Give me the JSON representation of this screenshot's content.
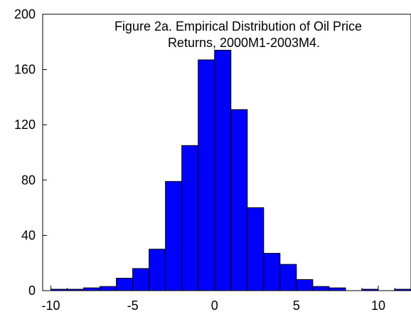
{
  "chart_data": {
    "type": "bar",
    "title": "Figure 2a. Empirical Distribution of Oil Price",
    "subtitle": "Returns, 2000M1-2003M4.",
    "xlabel": "",
    "ylabel": "",
    "xlim": [
      -10.5,
      12
    ],
    "ylim": [
      0,
      200
    ],
    "x_ticks": [
      -10,
      -5,
      0,
      5,
      10
    ],
    "y_ticks": [
      0,
      40,
      80,
      120,
      160,
      200
    ],
    "bin_width": 1,
    "bins": [
      {
        "start": -10,
        "end": -9,
        "value": 1
      },
      {
        "start": -9,
        "end": -8,
        "value": 1
      },
      {
        "start": -8,
        "end": -7,
        "value": 2
      },
      {
        "start": -7,
        "end": -6,
        "value": 3
      },
      {
        "start": -6,
        "end": -5,
        "value": 9
      },
      {
        "start": -5,
        "end": -4,
        "value": 16
      },
      {
        "start": -4,
        "end": -3,
        "value": 30
      },
      {
        "start": -3,
        "end": -2,
        "value": 79
      },
      {
        "start": -2,
        "end": -1,
        "value": 105
      },
      {
        "start": -1,
        "end": 0,
        "value": 167
      },
      {
        "start": 0,
        "end": 1,
        "value": 174
      },
      {
        "start": 1,
        "end": 2,
        "value": 131
      },
      {
        "start": 2,
        "end": 3,
        "value": 60
      },
      {
        "start": 3,
        "end": 4,
        "value": 27
      },
      {
        "start": 4,
        "end": 5,
        "value": 19
      },
      {
        "start": 5,
        "end": 6,
        "value": 8
      },
      {
        "start": 6,
        "end": 7,
        "value": 3
      },
      {
        "start": 7,
        "end": 8,
        "value": 2
      },
      {
        "start": 8,
        "end": 9,
        "value": 0
      },
      {
        "start": 9,
        "end": 10,
        "value": 1
      },
      {
        "start": 10,
        "end": 11,
        "value": 0
      },
      {
        "start": 11,
        "end": 12,
        "value": 1
      }
    ],
    "grid": false,
    "colors": {
      "bar_fill": "#0000ff",
      "bar_stroke": "#000000",
      "axis": "#000000",
      "background": "#ffffff"
    }
  }
}
